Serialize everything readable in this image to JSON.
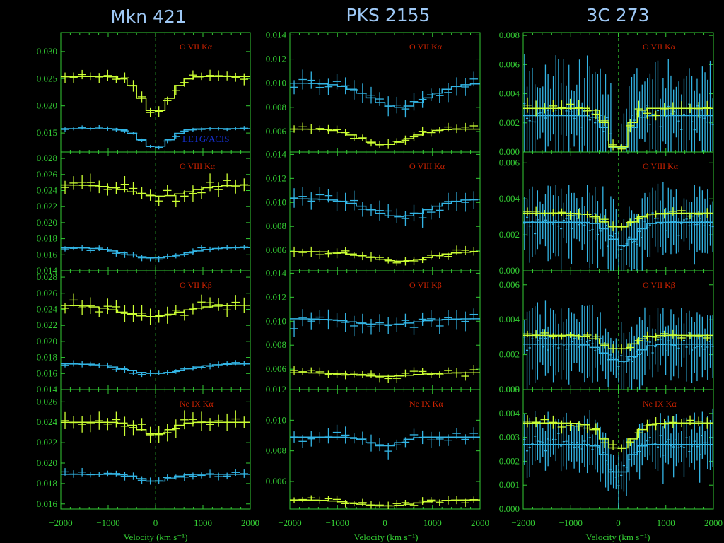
{
  "colors": {
    "background": "#000000",
    "frame": "#33cc33",
    "series_yellow": "#ccff33",
    "series_blue": "#33b5e5",
    "title": "#9ec8f5",
    "line_label": "#cc2200",
    "instrument_label": "#1530d0"
  },
  "chart_data": {
    "type": "scatter",
    "columns": [
      {
        "title": "Mkn 421",
        "xlabel": "Velocity (km s⁻¹)",
        "panels": [
          {
            "line_label": "O VII Kα",
            "instrument_label": "LETG/ACIS",
            "ylim": [
              0.0115,
              0.0335
            ],
            "yticks": [
              "0.030",
              "0.025",
              "0.020",
              "0.015"
            ],
            "series": [
              {
                "color": "yellow",
                "continuum": 0.0254,
                "depth": 0.0066,
                "center": 0,
                "width": 300,
                "scatter": 0.0008,
                "seed": 11
              },
              {
                "color": "blue",
                "continuum": 0.0158,
                "depth": 0.0034,
                "center": 0,
                "width": 300,
                "scatter": 0.0003,
                "seed": 12
              }
            ]
          },
          {
            "line_label": "O VIII Kα",
            "ylim": [
              0.014,
              0.0288
            ],
            "yticks": [
              "0.028",
              "0.026",
              "0.024",
              "0.022",
              "0.020",
              "0.018",
              "0.016",
              "0.014"
            ],
            "series": [
              {
                "color": "yellow",
                "continuum": 0.0247,
                "depth": 0.0014,
                "center": 100,
                "width": 600,
                "scatter": 0.0008,
                "seed": 21
              },
              {
                "color": "blue",
                "continuum": 0.0169,
                "depth": 0.0013,
                "center": 0,
                "width": 600,
                "scatter": 0.0003,
                "seed": 22
              }
            ]
          },
          {
            "line_label": "O VII Kβ",
            "ylim": [
              0.014,
              0.0288
            ],
            "yticks": [
              "0.028",
              "0.026",
              "0.024",
              "0.022",
              "0.020",
              "0.018",
              "0.016",
              "0.014"
            ],
            "series": [
              {
                "color": "yellow",
                "continuum": 0.0245,
                "depth": 0.0014,
                "center": -100,
                "width": 600,
                "scatter": 0.0008,
                "seed": 31
              },
              {
                "color": "blue",
                "continuum": 0.0172,
                "depth": 0.0012,
                "center": 0,
                "width": 600,
                "scatter": 0.0003,
                "seed": 32
              }
            ]
          },
          {
            "line_label": "Ne IX Kα",
            "ylim": [
              0.0155,
              0.0272
            ],
            "yticks": [
              "0.026",
              "0.024",
              "0.022",
              "0.020",
              "0.018",
              "0.016"
            ],
            "series": [
              {
                "color": "yellow",
                "continuum": 0.024,
                "depth": 0.0012,
                "center": 0,
                "width": 300,
                "scatter": 0.0007,
                "seed": 41
              },
              {
                "color": "blue",
                "continuum": 0.0189,
                "depth": 0.0007,
                "center": 0,
                "width": 300,
                "scatter": 0.0003,
                "seed": 42
              }
            ]
          }
        ]
      },
      {
        "title": "PKS 2155",
        "xlabel": "Velocity (km s⁻¹)",
        "panels": [
          {
            "line_label": "O VII Kα",
            "ylim": [
              0.0043,
              0.0142
            ],
            "yticks": [
              "0.014",
              "0.012",
              "0.010",
              "0.008",
              "0.006"
            ],
            "series": [
              {
                "color": "blue",
                "continuum": 0.01,
                "depth": 0.002,
                "center": 300,
                "width": 600,
                "scatter": 0.0006,
                "seed": 51
              },
              {
                "color": "yellow",
                "continuum": 0.0062,
                "depth": 0.0013,
                "center": 0,
                "width": 500,
                "scatter": 0.0003,
                "seed": 52
              }
            ]
          },
          {
            "line_label": "O VIII Kα",
            "ylim": [
              0.0043,
              0.0142
            ],
            "yticks": [
              "0.014",
              "0.012",
              "0.010",
              "0.008",
              "0.006"
            ],
            "series": [
              {
                "color": "blue",
                "continuum": 0.0103,
                "depth": 0.0015,
                "center": 300,
                "width": 600,
                "scatter": 0.0006,
                "seed": 61
              },
              {
                "color": "yellow",
                "continuum": 0.0059,
                "depth": 0.0008,
                "center": 300,
                "width": 600,
                "scatter": 0.0003,
                "seed": 62
              }
            ]
          },
          {
            "line_label": "O VII Kβ",
            "ylim": [
              0.0043,
              0.0142
            ],
            "yticks": [
              "0.014",
              "0.012",
              "0.010",
              "0.008",
              "0.006"
            ],
            "series": [
              {
                "color": "blue",
                "continuum": 0.0102,
                "depth": 0.0005,
                "center": 0,
                "width": 600,
                "scatter": 0.0006,
                "seed": 71
              },
              {
                "color": "yellow",
                "continuum": 0.0057,
                "depth": 0.0003,
                "center": 0,
                "width": 600,
                "scatter": 0.0003,
                "seed": 72
              }
            ]
          },
          {
            "line_label": "Ne IX Kα",
            "ylim": [
              0.0042,
              0.012
            ],
            "yticks": [
              "0.012",
              "0.010",
              "0.008",
              "0.006"
            ],
            "series": [
              {
                "color": "blue",
                "continuum": 0.0089,
                "depth": 0.0006,
                "center": 0,
                "width": 300,
                "scatter": 0.0004,
                "seed": 81
              },
              {
                "color": "yellow",
                "continuum": 0.0048,
                "depth": 0.0004,
                "center": 0,
                "width": 600,
                "scatter": 0.0002,
                "seed": 82
              }
            ]
          }
        ]
      },
      {
        "title": "3C 273",
        "xlabel": "Velocity (km s⁻¹)",
        "panels": [
          {
            "line_label": "O VII Kα",
            "ylim": [
              0.0,
              0.0082
            ],
            "yticks": [
              "0.008",
              "0.006",
              "0.004",
              "0.002",
              "0.000"
            ],
            "series": [
              {
                "color": "blue",
                "continuum": 0.0025,
                "depth": 0.0025,
                "center": 0,
                "width": 200,
                "scatter": 0.0012,
                "seed": 91,
                "dense": true
              },
              {
                "color": "yellow",
                "continuum": 0.003,
                "depth": 0.003,
                "center": 0,
                "width": 200,
                "scatter": 0.0004,
                "seed": 92
              }
            ]
          },
          {
            "line_label": "O VIII Kα",
            "ylim": [
              0.0,
              0.0066
            ],
            "yticks": [
              "0.006",
              "0.004",
              "0.002",
              "0.000"
            ],
            "series": [
              {
                "color": "blue",
                "continuum": 0.0027,
                "depth": 0.0013,
                "center": 100,
                "width": 250,
                "scatter": 0.0007,
                "seed": 101,
                "dense": true
              },
              {
                "color": "yellow",
                "continuum": 0.0032,
                "depth": 0.0008,
                "center": 0,
                "width": 300,
                "scatter": 0.0002,
                "seed": 102
              }
            ]
          },
          {
            "line_label": "O VII Kβ",
            "ylim": [
              0.0,
              0.0068
            ],
            "yticks": [
              "0.006",
              "0.004",
              "0.002",
              "0.000"
            ],
            "series": [
              {
                "color": "blue",
                "continuum": 0.0026,
                "depth": 0.001,
                "center": 50,
                "width": 300,
                "scatter": 0.0007,
                "seed": 111,
                "dense": true
              },
              {
                "color": "yellow",
                "continuum": 0.0031,
                "depth": 0.0008,
                "center": 0,
                "width": 300,
                "scatter": 0.0002,
                "seed": 112
              }
            ]
          },
          {
            "line_label": "Ne IX Kα",
            "ylim": [
              0.0,
              0.005
            ],
            "yticks": [
              "0.005",
              "0.004",
              "0.003",
              "0.002",
              "0.001",
              "0.000"
            ],
            "series": [
              {
                "color": "blue",
                "continuum": 0.0027,
                "depth": 0.0013,
                "center": 0,
                "width": 200,
                "scatter": 0.0004,
                "seed": 121,
                "dense": true
              },
              {
                "color": "yellow",
                "continuum": 0.0036,
                "depth": 0.0011,
                "center": 0,
                "width": 300,
                "scatter": 0.0002,
                "seed": 122
              }
            ]
          }
        ]
      }
    ],
    "xlim": [
      -2000,
      2000
    ],
    "xticks": [
      "−2000",
      "−1000",
      "0",
      "1000",
      "2000"
    ],
    "grid": false,
    "legend": "none"
  }
}
